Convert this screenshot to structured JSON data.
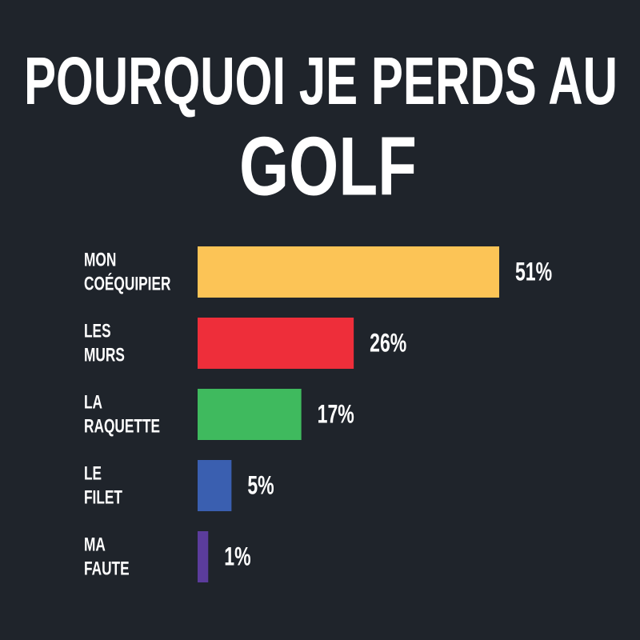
{
  "chart_data": {
    "type": "bar",
    "orientation": "horizontal",
    "title": [
      "POURQUOI JE PERDS AU",
      "GOLF"
    ],
    "categories": [
      [
        "MON",
        "COÉQUIPIER"
      ],
      [
        "LES",
        "MURS"
      ],
      [
        "LA",
        "RAQUETTE"
      ],
      [
        "LE",
        "FILET"
      ],
      [
        "MA",
        "FAUTE"
      ]
    ],
    "values": [
      51,
      26,
      17,
      5,
      1
    ],
    "value_labels": [
      "51%",
      "26%",
      "17%",
      "5%",
      "1%"
    ],
    "colors": [
      "#fcc456",
      "#ee2e3a",
      "#3fba5e",
      "#3a5fb0",
      "#5b3c9c"
    ]
  }
}
